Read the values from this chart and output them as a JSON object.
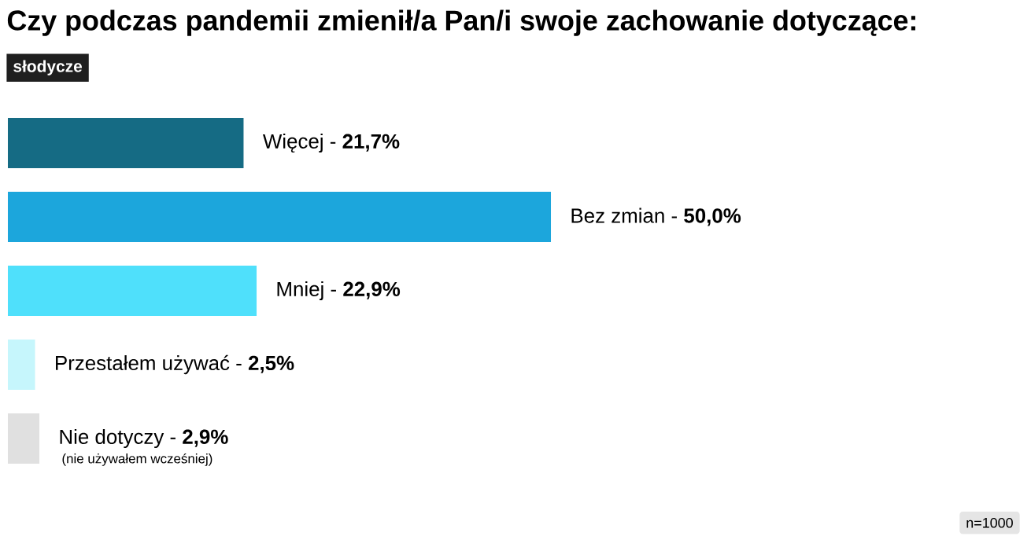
{
  "chart_data": {
    "type": "bar",
    "orientation": "horizontal",
    "title": "Czy podczas pandemii zmienił/a Pan/i swoje zachowanie dotyczące:",
    "subtitle": "słodycze",
    "categories": [
      null,
      null,
      null,
      null,
      null
    ],
    "values": [
      21.7,
      50.0,
      22.9,
      2.5,
      2.9
    ],
    "value_labels": [
      "Więcej - **21,7%**",
      "Bez zmian - **50,0%**",
      "Mniej - **22,9%**",
      "Przestałem używać - **2,5%**",
      "Nie dotyczy - **2,9%**"
    ],
    "colors": [
      "#156b84",
      "#1ca6dc",
      "#4fe0fb",
      "#c6f6fc",
      "#e0e0e0"
    ],
    "annotations": [
      "(nie używałem wcześniej)",
      "n=1000"
    ]
  }
}
